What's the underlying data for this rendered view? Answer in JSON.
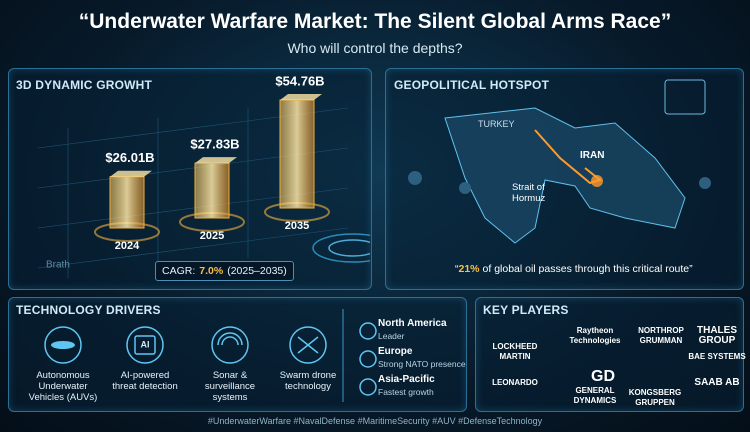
{
  "header": {
    "title": "“Underwater Warfare Market: The Silent Global Arms Race”",
    "subtitle": "Who will control the depths?"
  },
  "chart_data": {
    "type": "bar",
    "title": "3D DYNAMIC GROWHT",
    "axis_label": "Brath",
    "categories": [
      "2024",
      "2025",
      "2035"
    ],
    "values": [
      26.01,
      27.83,
      54.76
    ],
    "value_labels": [
      "$26.01B",
      "$27.83B",
      "$54.76B"
    ],
    "color": "#f0b040"
  },
  "cagr": {
    "label": "CAGR:",
    "value": "7.0%",
    "period": "(2025–2035)"
  },
  "hotspot": {
    "title": "GEOPOLITICAL HOTSPOT",
    "labels": [
      "TURKEY",
      "IRAN",
      "Strait of Hormuz"
    ],
    "quote_open": "“",
    "quote_highlight": "21%",
    "quote_text": "of global oil passes through this critical route”"
  },
  "technology": {
    "title": "TECHNOLOGY DRIVERS",
    "icon_text": "AI",
    "items": [
      "Autonomous Underwater Vehicles (AUVs)",
      "AI-powered threat detection",
      "Sonar & surveillance systems",
      "Swarm drone technology"
    ]
  },
  "regions": [
    {
      "name": "North America",
      "note": "Leader"
    },
    {
      "name": "Europe",
      "note": "Strong NATO presence"
    },
    {
      "name": "Asia-Pacific",
      "note": "Fastest growth"
    }
  ],
  "players": {
    "title": "KEY PLAYERS",
    "gd_logo": "GD",
    "companies": [
      "LOCKHEED MARTIN",
      "Raytheon Technologies",
      "NORTHROP GRUMMAN",
      "THALES GROUP",
      "BAE SYSTEMS",
      "LEONARDO",
      "GENERAL DYNAMICS",
      "KONGSBERG GRUPPEN",
      "SAAB AB"
    ]
  },
  "footer": "#UnderwaterWarfare #NavalDefense #MaritimeSecurity #AUV #DefenseTechnology"
}
